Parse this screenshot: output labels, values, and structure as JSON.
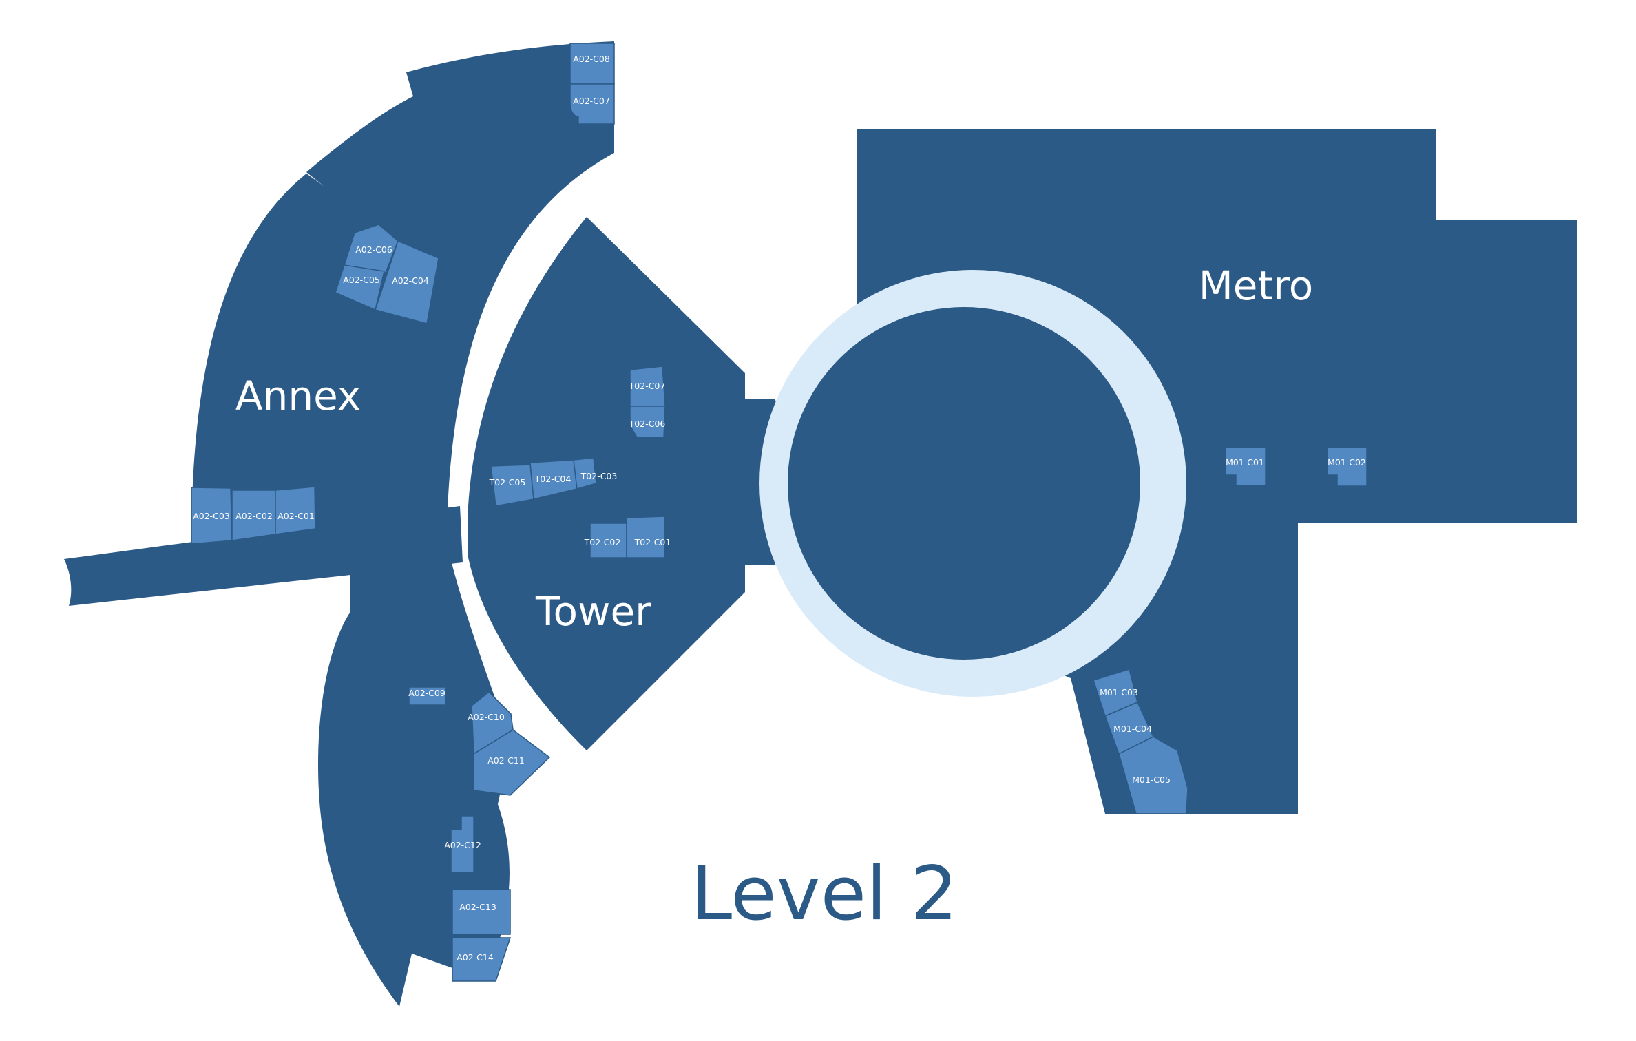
{
  "map": {
    "title": "Level 2",
    "colors": {
      "building": "#2c5a87",
      "room": "#5289c2",
      "atrium_ring": "#d9eaf8",
      "background": "#ffffff",
      "label": "#ffffff"
    },
    "buildings": {
      "annex": "Annex",
      "tower": "Tower",
      "metro": "Metro"
    },
    "rooms": {
      "a02_c01": "A02-C01",
      "a02_c02": "A02-C02",
      "a02_c03": "A02-C03",
      "a02_c04": "A02-C04",
      "a02_c05": "A02-C05",
      "a02_c06": "A02-C06",
      "a02_c07": "A02-C07",
      "a02_c08": "A02-C08",
      "a02_c09": "A02-C09",
      "a02_c10": "A02-C10",
      "a02_c11": "A02-C11",
      "a02_c12": "A02-C12",
      "a02_c13": "A02-C13",
      "a02_c14": "A02-C14",
      "t02_c01": "T02-C01",
      "t02_c02": "T02-C02",
      "t02_c03": "T02-C03",
      "t02_c04": "T02-C04",
      "t02_c05": "T02-C05",
      "t02_c06": "T02-C06",
      "t02_c07": "T02-C07",
      "m01_c01": "M01-C01",
      "m01_c02": "M01-C02",
      "m01_c03": "M01-C03",
      "m01_c04": "M01-C04",
      "m01_c05": "M01-C05"
    }
  }
}
